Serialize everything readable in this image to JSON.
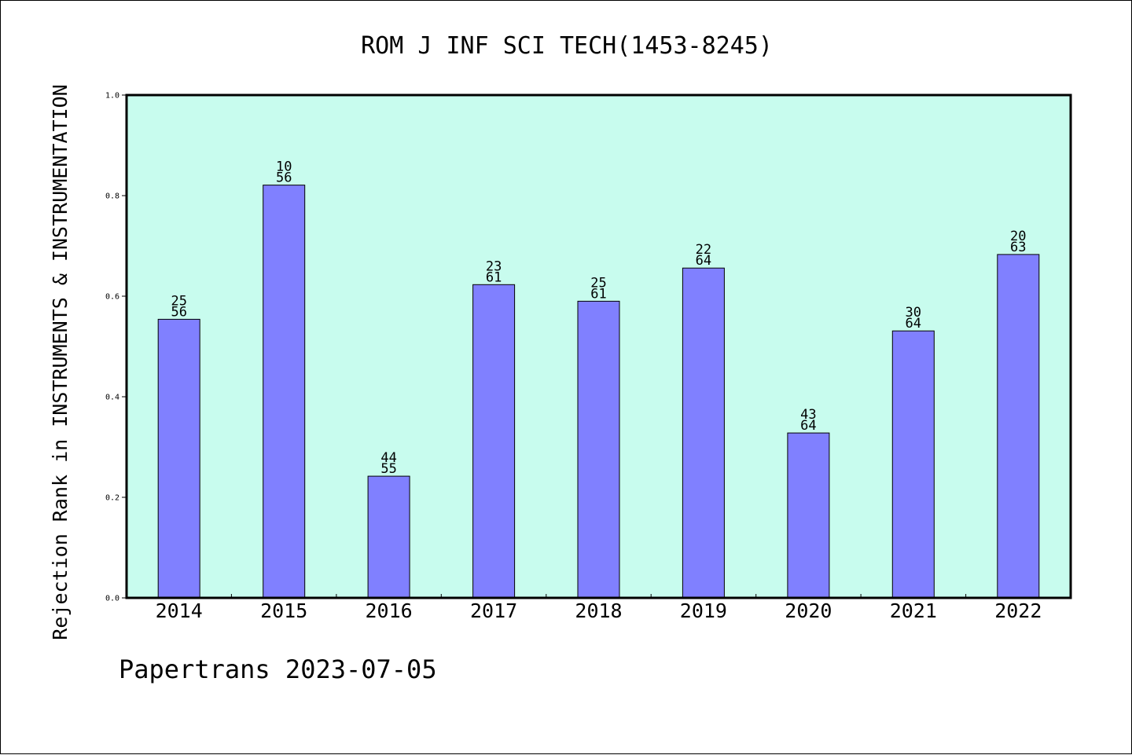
{
  "chart_data": {
    "type": "bar",
    "title": "ROM J INF SCI TECH(1453-8245)",
    "xlabel": "",
    "ylabel": "Rejection Rank in INSTRUMENTS & INSTRUMENTATION",
    "categories": [
      "2014",
      "2015",
      "2016",
      "2017",
      "2018",
      "2019",
      "2020",
      "2021",
      "2022"
    ],
    "values": [
      0.554,
      0.821,
      0.242,
      0.623,
      0.59,
      0.656,
      0.328,
      0.531,
      0.683
    ],
    "bar_labels": [
      {
        "top": "25",
        "bottom": "56"
      },
      {
        "top": "10",
        "bottom": "56"
      },
      {
        "top": "44",
        "bottom": "55"
      },
      {
        "top": "23",
        "bottom": "61"
      },
      {
        "top": "25",
        "bottom": "61"
      },
      {
        "top": "22",
        "bottom": "64"
      },
      {
        "top": "43",
        "bottom": "64"
      },
      {
        "top": "30",
        "bottom": "64"
      },
      {
        "top": "20",
        "bottom": "63"
      }
    ],
    "ylim": [
      0,
      1.0
    ],
    "yticks": [
      "0.0",
      "0.2",
      "0.4",
      "0.6",
      "0.8",
      "1.0"
    ],
    "grid": false,
    "colors": {
      "plot_background": "#c8fcee",
      "bar_fill": "#8080ff",
      "bar_stroke": "#000000",
      "axis": "#000000"
    }
  },
  "footer": {
    "text": "Papertrans 2023-07-05"
  }
}
